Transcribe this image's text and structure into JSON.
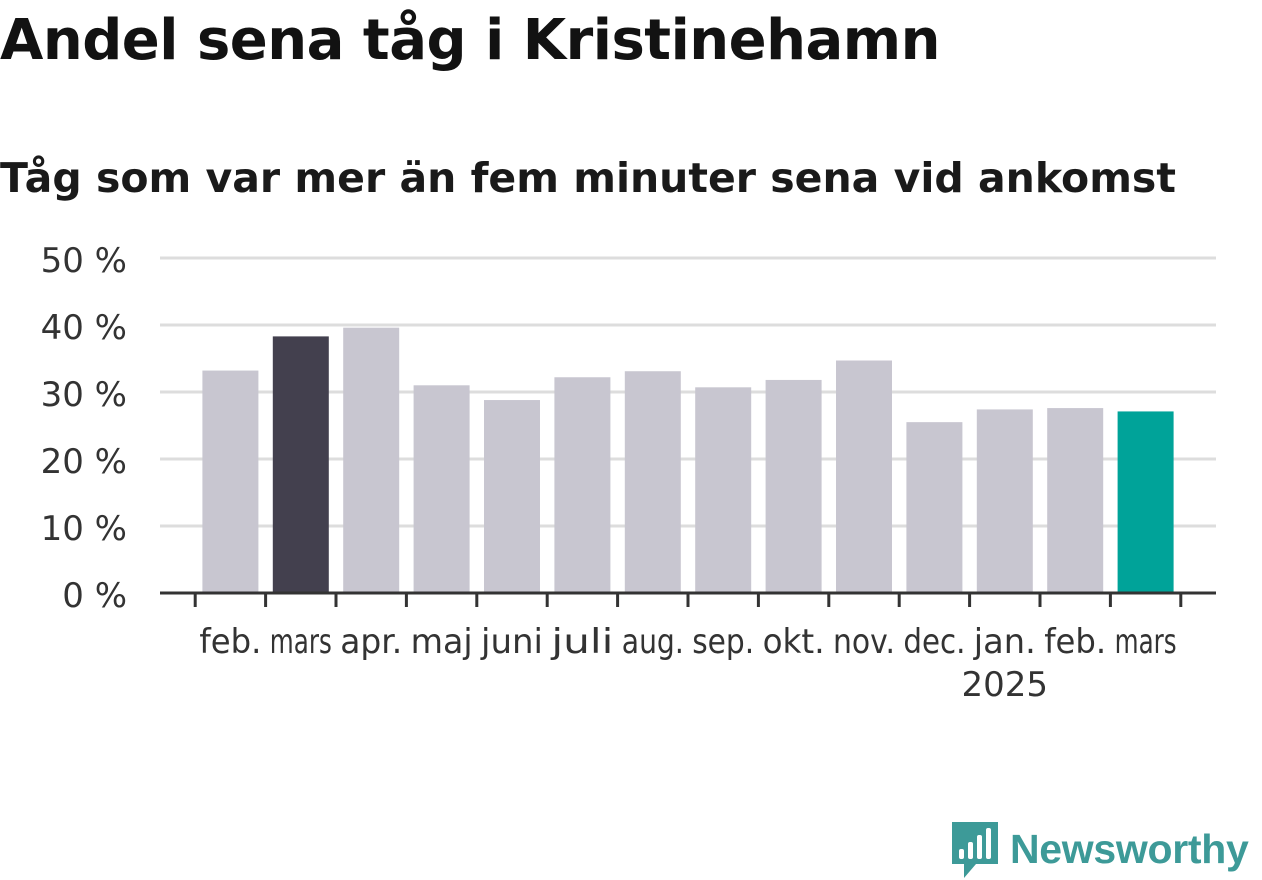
{
  "title": "Andel sena tåg i Kristinehamn",
  "subtitle": "Tåg som var mer än fem minuter sena vid ankomst",
  "brand": {
    "name": "Newsworthy",
    "color": "#3d9a98",
    "icon": "newsworthy-logo-icon"
  },
  "colors": {
    "default_bar": "#c8c6d0",
    "highlight_previous": "#43404e",
    "highlight_current": "#00a399",
    "grid": "#dddddd",
    "axis": "#333333",
    "tick_text": "#333333"
  },
  "chart_data": {
    "type": "bar",
    "categories": [
      "feb.",
      "mars",
      "apr.",
      "maj",
      "juni",
      "juli",
      "aug.",
      "sep.",
      "okt.",
      "nov.",
      "dec.",
      "jan.",
      "feb.",
      "mars"
    ],
    "year_labels": [
      {
        "index": 11,
        "label": "2025"
      }
    ],
    "values": [
      33.2,
      38.3,
      39.6,
      31.0,
      28.8,
      32.2,
      33.1,
      30.7,
      31.8,
      34.7,
      25.5,
      27.4,
      27.6,
      27.1
    ],
    "highlights": {
      "1": "highlight_previous",
      "13": "highlight_current"
    },
    "yticks": [
      "0 %",
      "10 %",
      "20 %",
      "30 %",
      "40 %",
      "50 %"
    ],
    "ylim": [
      0,
      50
    ],
    "xlabel": "",
    "ylabel": "",
    "grid": true,
    "legend": "none"
  }
}
